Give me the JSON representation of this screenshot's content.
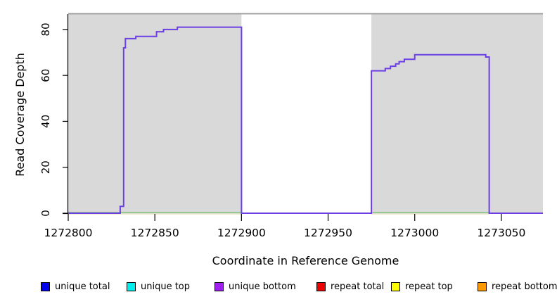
{
  "figure": {
    "y_axis_title": "Read Coverage Depth",
    "x_axis_title": "Coordinate in Reference Genome"
  },
  "chart_data": {
    "type": "line",
    "title": "",
    "xlabel": "Coordinate in Reference Genome",
    "ylabel": "Read Coverage Depth",
    "xlim": [
      1272800,
      1273074
    ],
    "ylim": [
      0,
      86.7
    ],
    "x_ticks": [
      1272800,
      1272850,
      1272900,
      1272950,
      1273000,
      1273050
    ],
    "y_ticks": [
      0,
      20,
      40,
      60,
      80
    ],
    "grid": false,
    "legend_position": "bottom",
    "background_blocks": {
      "comment": "gray shaded genomic blocks behind the curve",
      "ranges": [
        [
          1272800,
          1272900
        ],
        [
          1272975,
          1273074
        ]
      ],
      "fill": "#D9D9D9",
      "top_border": "#999999"
    },
    "zero_line_artifacts": {
      "comment": "overlapping near-zero series visible at baseline inside gray blocks",
      "segments": [
        [
          1272800,
          1272900
        ],
        [
          1272975,
          1273043
        ]
      ],
      "green": "#6FBE6F",
      "yellow": "#EDE9C4"
    },
    "series": [
      {
        "name": "unique total",
        "color": "#0000EE",
        "points": [
          [
            1272800,
            0
          ],
          [
            1272830,
            3
          ],
          [
            1272832,
            72
          ],
          [
            1272833,
            76
          ],
          [
            1272839,
            77
          ],
          [
            1272851,
            79
          ],
          [
            1272855,
            80
          ],
          [
            1272863,
            81
          ],
          [
            1272900,
            0
          ],
          [
            1272975,
            62
          ],
          [
            1272983,
            63
          ],
          [
            1272986,
            64
          ],
          [
            1272989,
            65
          ],
          [
            1272991,
            66
          ],
          [
            1272994,
            67
          ],
          [
            1273000,
            69
          ],
          [
            1273041,
            68
          ],
          [
            1273043,
            0
          ],
          [
            1273074,
            0
          ]
        ]
      },
      {
        "name": "unique top",
        "color": "#00EEEE",
        "points": [
          [
            1272800,
            0
          ],
          [
            1273074,
            0
          ]
        ]
      },
      {
        "name": "unique bottom",
        "color": "#A020F0",
        "draw_color": "#6B3FE4",
        "render": true,
        "points": [
          [
            1272800,
            0
          ],
          [
            1272830,
            3
          ],
          [
            1272832,
            72
          ],
          [
            1272833,
            76
          ],
          [
            1272839,
            77
          ],
          [
            1272851,
            79
          ],
          [
            1272855,
            80
          ],
          [
            1272863,
            81
          ],
          [
            1272900,
            0
          ],
          [
            1272975,
            62
          ],
          [
            1272983,
            63
          ],
          [
            1272986,
            64
          ],
          [
            1272989,
            65
          ],
          [
            1272991,
            66
          ],
          [
            1272994,
            67
          ],
          [
            1273000,
            69
          ],
          [
            1273041,
            68
          ],
          [
            1273043,
            0
          ],
          [
            1273074,
            0
          ]
        ]
      },
      {
        "name": "repeat total",
        "color": "#EE0000",
        "points": [
          [
            1272800,
            0
          ],
          [
            1273074,
            0
          ]
        ]
      },
      {
        "name": "repeat top",
        "color": "#FFFF00",
        "points": [
          [
            1272800,
            0
          ],
          [
            1273074,
            0
          ]
        ]
      },
      {
        "name": "repeat bottom",
        "color": "#FF9900",
        "points": [
          [
            1272800,
            0
          ],
          [
            1273074,
            0
          ]
        ]
      }
    ],
    "legend": {
      "items": [
        {
          "label": "unique total",
          "color": "#0000EE"
        },
        {
          "label": "unique top",
          "color": "#00EEEE"
        },
        {
          "label": "unique bottom",
          "color": "#A020F0"
        },
        {
          "label": "repeat total",
          "color": "#EE0000"
        },
        {
          "label": "repeat top",
          "color": "#FFFF00"
        },
        {
          "label": "repeat bottom",
          "color": "#FF9900"
        }
      ]
    }
  }
}
